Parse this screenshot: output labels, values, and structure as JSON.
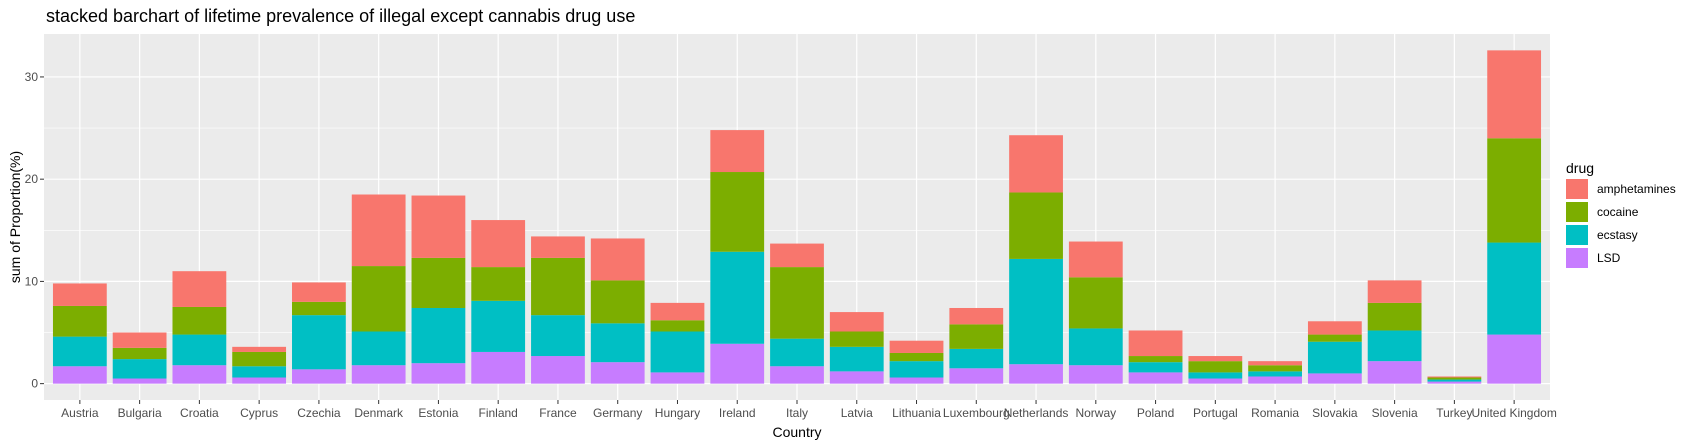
{
  "chart_data": {
    "type": "bar",
    "stacked": true,
    "title": "stacked barchart of lifetime prevalence of illegal except cannabis drug use",
    "xlabel": "Country",
    "ylabel": "sum of Proportion(%)",
    "ylim": [
      -1.6,
      34.2
    ],
    "yticks": [
      0,
      10,
      20,
      30
    ],
    "grid": true,
    "legend": {
      "title": "drug",
      "position": "right"
    },
    "categories": [
      "Austria",
      "Bulgaria",
      "Croatia",
      "Cyprus",
      "Czechia",
      "Denmark",
      "Estonia",
      "Finland",
      "France",
      "Germany",
      "Hungary",
      "Ireland",
      "Italy",
      "Latvia",
      "Lithuania",
      "Luxembourg",
      "Netherlands",
      "Norway",
      "Poland",
      "Portugal",
      "Romania",
      "Slovakia",
      "Slovenia",
      "Turkey",
      "United Kingdom"
    ],
    "series": [
      {
        "name": "amphetamines",
        "color": "#F8766D",
        "values": [
          2.2,
          1.5,
          3.5,
          0.5,
          1.9,
          7.0,
          6.1,
          4.6,
          2.1,
          4.1,
          1.7,
          4.1,
          2.3,
          1.9,
          1.2,
          1.6,
          5.6,
          3.5,
          2.5,
          0.5,
          0.4,
          1.3,
          2.2,
          0.1,
          8.6
        ]
      },
      {
        "name": "cocaine",
        "color": "#7CAE00",
        "values": [
          3.0,
          1.1,
          2.7,
          1.4,
          1.3,
          6.4,
          4.9,
          3.3,
          5.6,
          4.2,
          1.1,
          7.8,
          7.0,
          1.5,
          0.8,
          2.4,
          6.5,
          5.0,
          0.6,
          1.1,
          0.6,
          0.7,
          2.7,
          0.2,
          10.2
        ]
      },
      {
        "name": "ecstasy",
        "color": "#00BFC4",
        "values": [
          2.9,
          1.9,
          3.0,
          1.1,
          5.3,
          3.3,
          5.4,
          5.0,
          4.0,
          3.8,
          4.0,
          9.0,
          2.7,
          2.4,
          1.6,
          1.9,
          10.3,
          3.6,
          1.0,
          0.6,
          0.5,
          3.1,
          3.0,
          0.2,
          9.0
        ]
      },
      {
        "name": "LSD",
        "color": "#C77CFF",
        "values": [
          1.7,
          0.5,
          1.8,
          0.6,
          1.4,
          1.8,
          2.0,
          3.1,
          2.7,
          2.1,
          1.1,
          3.9,
          1.7,
          1.2,
          0.6,
          1.5,
          1.9,
          1.8,
          1.1,
          0.5,
          0.7,
          1.0,
          2.2,
          0.2,
          4.8
        ]
      }
    ]
  }
}
